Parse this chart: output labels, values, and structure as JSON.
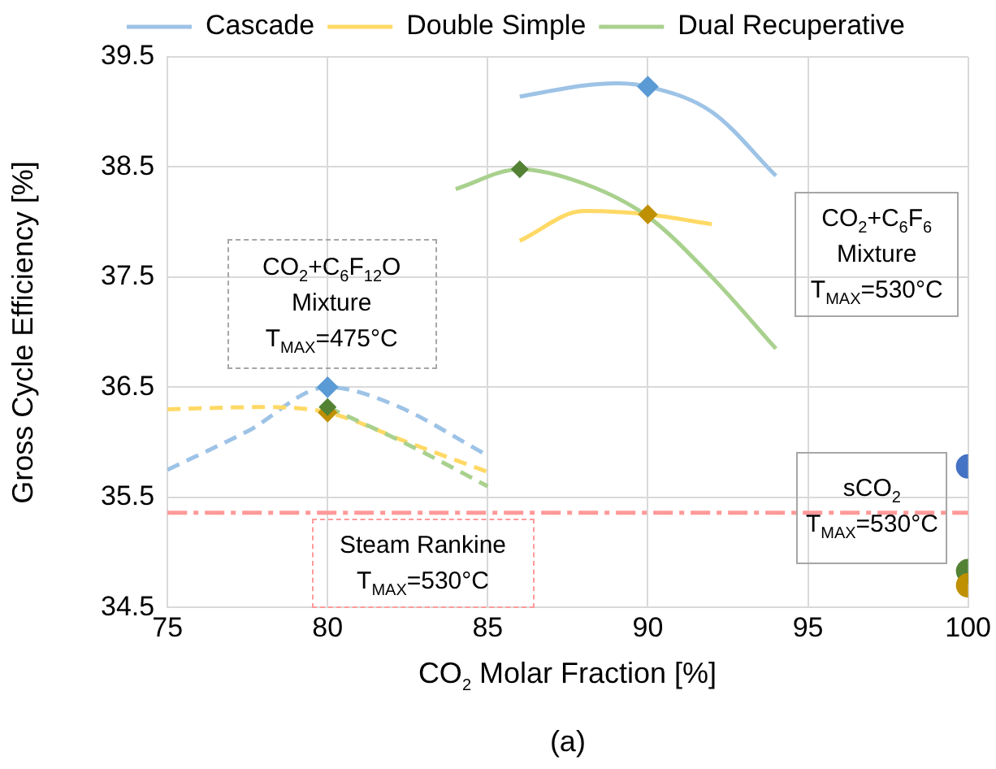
{
  "chart_data": {
    "type": "line",
    "xlabel": "CO$_{2}$ Molar Fraction [%]",
    "ylabel": "Gross Cycle Efficiency [%]",
    "xlim": [
      75,
      100
    ],
    "xticks": [
      75,
      80,
      85,
      90,
      95,
      100
    ],
    "ylim": [
      34.5,
      39.5
    ],
    "yticks": [
      34.5,
      35.5,
      36.5,
      37.5,
      38.5,
      39.5
    ],
    "grid": true,
    "legend": "top",
    "series": [
      {
        "name": "Cascade",
        "color": "#9dc3e6",
        "type": "line",
        "marker": "none",
        "line_style": "solid",
        "x": [
          86,
          88,
          89,
          90,
          92,
          94
        ],
        "values": [
          39.14,
          39.24,
          39.26,
          39.23,
          39.0,
          38.42
        ]
      },
      {
        "name": "Double Simple",
        "color": "#ffd966",
        "type": "line",
        "marker": "none",
        "line_style": "solid",
        "x": [
          86,
          88,
          90,
          92
        ],
        "values": [
          37.83,
          38.1,
          38.07,
          37.98
        ]
      },
      {
        "name": "Dual Recuperative",
        "color": "#a9d18e",
        "type": "line",
        "marker": "none",
        "line_style": "solid",
        "x": [
          84,
          86,
          88,
          90,
          92,
          94
        ],
        "values": [
          38.3,
          38.48,
          38.35,
          38.05,
          37.5,
          36.85
        ]
      },
      {
        "color": "#9dc3e6",
        "type": "line",
        "marker": "none",
        "line_style": "dashed",
        "x": [
          75,
          77.5,
          80,
          82,
          85
        ],
        "values": [
          35.75,
          36.1,
          36.5,
          36.35,
          35.88
        ]
      },
      {
        "color": "#ffd966",
        "type": "line",
        "marker": "none",
        "line_style": "dashed",
        "x": [
          75,
          78,
          80,
          82.5,
          85
        ],
        "values": [
          36.3,
          36.32,
          36.27,
          36.0,
          35.73
        ]
      },
      {
        "color": "#a9d18e",
        "type": "line",
        "marker": "none",
        "line_style": "dashed",
        "x": [
          80,
          82.5,
          85
        ],
        "values": [
          36.32,
          35.98,
          35.6
        ]
      },
      {
        "color": "#5b9bd5",
        "type": "scatter",
        "marker": "diamond",
        "x": [
          80,
          90
        ],
        "values": [
          36.5,
          39.23
        ]
      },
      {
        "color": "#bf9000",
        "type": "scatter",
        "marker": "diamond",
        "x": [
          80,
          90
        ],
        "values": [
          36.27,
          38.07
        ]
      },
      {
        "color": "#548235",
        "type": "scatter",
        "marker": "diamond",
        "x": [
          80,
          86
        ],
        "values": [
          36.32,
          38.48
        ]
      },
      {
        "color": "#4472c4",
        "type": "scatter",
        "marker": "circle",
        "x": [
          100
        ],
        "values": [
          35.78
        ]
      },
      {
        "color": "#548235",
        "type": "scatter",
        "marker": "circle",
        "x": [
          100
        ],
        "values": [
          34.83
        ]
      },
      {
        "color": "#bf9000",
        "type": "scatter",
        "marker": "circle",
        "x": [
          100
        ],
        "values": [
          34.7
        ]
      }
    ],
    "ref_lines": [
      {
        "axis": "y",
        "value": 35.36,
        "color": "#ff9999",
        "line_style": "dashed"
      }
    ],
    "annotations": [
      "CO$_{2}$+C$_{6}$F$_{12}$O\nMixture\nT$_{MAX}$=475°C",
      "CO$_{2}$+C$_{6}$F$_{6}$\nMixture\nT$_{MAX}$=530°C",
      "sCO$_{2}$\nT$_{MAX}$=530°C",
      "Steam Rankine\nT$_{MAX}$=530°C",
      "(a)"
    ]
  }
}
